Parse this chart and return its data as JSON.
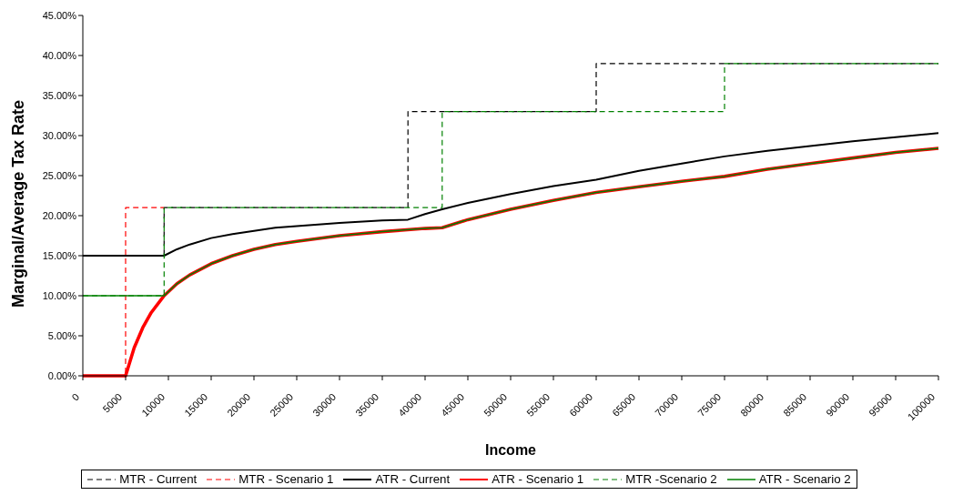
{
  "chart_data": {
    "type": "line",
    "xlabel": "Income",
    "ylabel": "Marginal/Average Tax Rate",
    "xlim": [
      0,
      100000
    ],
    "xticks": [
      0,
      5000,
      10000,
      15000,
      20000,
      25000,
      30000,
      35000,
      40000,
      45000,
      50000,
      55000,
      60000,
      65000,
      70000,
      75000,
      80000,
      85000,
      90000,
      95000,
      100000
    ],
    "ylim": [
      0,
      45
    ],
    "yticks": [
      {
        "value": 0,
        "label": "0.00%"
      },
      {
        "value": 5,
        "label": "5.00%"
      },
      {
        "value": 10,
        "label": "10.00%"
      },
      {
        "value": 15,
        "label": "15.00%"
      },
      {
        "value": 20,
        "label": "20.00%"
      },
      {
        "value": 25,
        "label": "25.00%"
      },
      {
        "value": 30,
        "label": "30.00%"
      },
      {
        "value": 35,
        "label": "35.00%"
      },
      {
        "value": 40,
        "label": "40.00%"
      },
      {
        "value": 45,
        "label": "45.00%"
      }
    ],
    "legend": "bottom",
    "series": [
      {
        "name": "MTR - Current",
        "type": "step",
        "color": "#000000",
        "line_style": "dashed",
        "x": [
          0,
          9500,
          38000,
          60000,
          100000
        ],
        "values": [
          15,
          21,
          33,
          39,
          39
        ]
      },
      {
        "name": "MTR - Scenario 1",
        "type": "step",
        "color": "#ff0000",
        "line_style": "dashed",
        "x": [
          0,
          5000,
          9500
        ],
        "values": [
          0,
          21,
          21
        ]
      },
      {
        "name": "ATR - Current",
        "type": "line",
        "color": "#000000",
        "line_style": "solid",
        "x": [
          0,
          9500,
          11000,
          12500,
          15000,
          17500,
          20000,
          22500,
          25000,
          30000,
          35000,
          38000,
          40000,
          42000,
          45000,
          50000,
          55000,
          60000,
          65000,
          70000,
          75000,
          80000,
          85000,
          90000,
          95000,
          100000
        ],
        "values": [
          15,
          15,
          15.8,
          16.4,
          17.2,
          17.7,
          18.1,
          18.5,
          18.7,
          19.1,
          19.4,
          19.5,
          20.2,
          20.8,
          21.6,
          22.7,
          23.7,
          24.5,
          25.6,
          26.5,
          27.4,
          28.1,
          28.7,
          29.3,
          29.8,
          30.3
        ]
      },
      {
        "name": "ATR - Scenario 1",
        "type": "line",
        "color": "#ff0000",
        "line_style": "solid",
        "x": [
          0,
          5000,
          6000,
          7000,
          8000,
          9000,
          9500,
          11000,
          12500,
          15000,
          17500,
          20000,
          22500,
          25000,
          30000,
          35000,
          40000,
          42000,
          45000,
          50000,
          55000,
          60000,
          65000,
          70000,
          75000,
          80000,
          85000,
          90000,
          95000,
          100000
        ],
        "values": [
          0,
          0,
          3.5,
          6.0,
          7.9,
          9.3,
          10.0,
          11.5,
          12.6,
          14.0,
          15.0,
          15.8,
          16.4,
          16.8,
          17.5,
          18.0,
          18.4,
          18.5,
          19.5,
          20.8,
          21.9,
          22.9,
          23.6,
          24.3,
          24.9,
          25.8,
          26.5,
          27.2,
          27.9,
          28.4
        ]
      },
      {
        "name": "MTR -Scenario 2",
        "type": "step",
        "color": "#008000",
        "line_style": "dashed",
        "x": [
          0,
          9500,
          42000,
          75000,
          100000
        ],
        "values": [
          10,
          21,
          33,
          39,
          39
        ]
      },
      {
        "name": "ATR - Scenario 2",
        "type": "line",
        "color": "#008000",
        "line_style": "solid",
        "x": [
          0,
          9500,
          11000,
          12500,
          15000,
          17500,
          20000,
          22500,
          25000,
          30000,
          35000,
          40000,
          42000,
          45000,
          50000,
          55000,
          60000,
          65000,
          70000,
          75000,
          80000,
          85000,
          90000,
          95000,
          100000
        ],
        "values": [
          10,
          10,
          11.5,
          12.6,
          14.0,
          15.0,
          15.8,
          16.4,
          16.8,
          17.5,
          18.0,
          18.4,
          18.5,
          19.5,
          20.8,
          21.9,
          22.9,
          23.6,
          24.3,
          24.9,
          25.8,
          26.5,
          27.2,
          27.9,
          28.4
        ]
      }
    ]
  }
}
